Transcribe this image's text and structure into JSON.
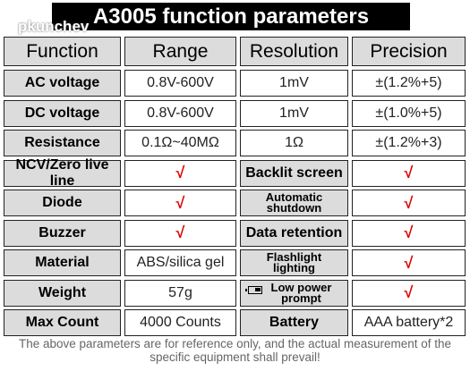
{
  "title": "A3005 function parameters",
  "watermark": "pkunchev",
  "table": {
    "header": [
      "Function",
      "Range",
      "Resolution",
      "Precision"
    ],
    "rows": [
      [
        "AC voltage",
        "0.8V-600V",
        "1mV",
        "±(1.2%+5)"
      ],
      [
        "DC voltage",
        "0.8V-600V",
        "1mV",
        "±(1.0%+5)"
      ],
      [
        "Resistance",
        "0.1Ω~40MΩ",
        "1Ω",
        "±(1.2%+3)"
      ],
      [
        "NCV/Zero live line",
        "√",
        "Backlit screen",
        "√"
      ],
      [
        "Diode",
        "√",
        "Automatic shutdown",
        "√"
      ],
      [
        "Buzzer",
        "√",
        "Data retention",
        "√"
      ],
      [
        "Material",
        "ABS/silica gel",
        "Flashlight lighting",
        "√"
      ],
      [
        "Weight",
        "57g",
        "Low power prompt",
        "√"
      ],
      [
        "Max Count",
        "4000 Counts",
        "Battery",
        "AAA battery*2"
      ]
    ]
  },
  "note": "The above parameters are for reference only, and the actual measurement of the specific equipment shall prevail!"
}
